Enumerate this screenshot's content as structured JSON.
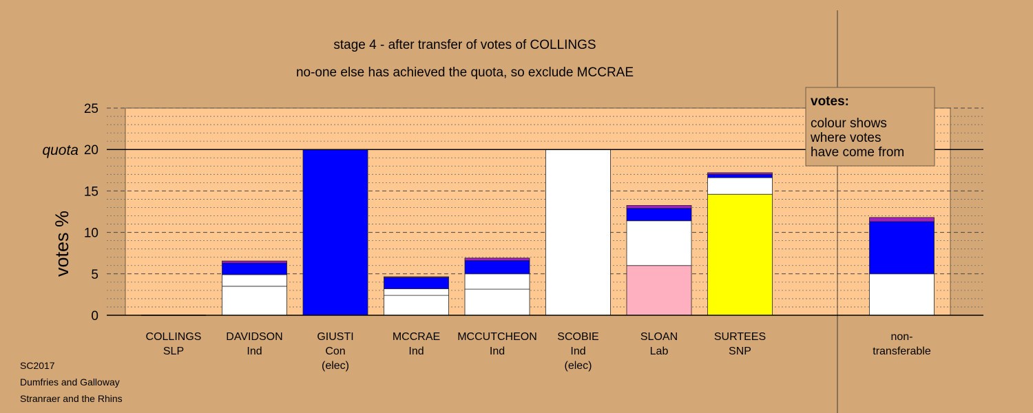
{
  "chart_data": {
    "type": "bar",
    "stacked": true,
    "title": "stage 4 - after transfer of votes of COLLINGS",
    "subtitle": "no-one else has achieved the quota, so exclude MCCRAE",
    "ylabel": "votes %",
    "ylim": [
      0,
      25
    ],
    "yticks": [
      "0",
      "5",
      "10",
      "15",
      "20",
      "25"
    ],
    "quota": {
      "label": "quota",
      "value": 20
    },
    "legend": {
      "title": "votes:",
      "lines": [
        "colour shows",
        "where votes",
        "have come from"
      ],
      "position": "top-right"
    },
    "categories": [
      {
        "lines": [
          "COLLINGS",
          "SLP"
        ],
        "segments": []
      },
      {
        "lines": [
          "DAVIDSON",
          "Ind"
        ],
        "segments": [
          {
            "value": 3.5,
            "color": "#ffffff"
          },
          {
            "value": 1.4,
            "color": "#ffffff"
          },
          {
            "value": 1.4,
            "color": "#0000ff"
          },
          {
            "value": 0.25,
            "color": "#a020c0"
          }
        ]
      },
      {
        "lines": [
          "GIUSTI",
          "Con",
          "(elec)"
        ],
        "segments": [
          {
            "value": 20,
            "color": "#0000ff"
          }
        ]
      },
      {
        "lines": [
          "MCCRAE",
          "Ind"
        ],
        "segments": [
          {
            "value": 2.4,
            "color": "#ffffff"
          },
          {
            "value": 0.8,
            "color": "#ffffff"
          },
          {
            "value": 1.35,
            "color": "#0000ff"
          },
          {
            "value": 0.1,
            "color": "#a020c0"
          }
        ]
      },
      {
        "lines": [
          "MCCUTCHEON",
          "Ind"
        ],
        "segments": [
          {
            "value": 3.15,
            "color": "#ffffff"
          },
          {
            "value": 1.85,
            "color": "#ffffff"
          },
          {
            "value": 1.6,
            "color": "#0000ff"
          },
          {
            "value": 0.3,
            "color": "#a020c0"
          }
        ]
      },
      {
        "lines": [
          "SCOBIE",
          "Ind",
          "(elec)"
        ],
        "segments": [
          {
            "value": 20,
            "color": "#ffffff"
          }
        ]
      },
      {
        "lines": [
          "SLOAN",
          "Lab"
        ],
        "segments": [
          {
            "value": 6.0,
            "color": "#ffb0c0"
          },
          {
            "value": 5.4,
            "color": "#ffffff"
          },
          {
            "value": 1.5,
            "color": "#0000ff"
          },
          {
            "value": 0.35,
            "color": "#a020c0"
          }
        ]
      },
      {
        "lines": [
          "SURTEES",
          "SNP"
        ],
        "segments": [
          {
            "value": 14.6,
            "color": "#ffff00"
          },
          {
            "value": 2.0,
            "color": "#ffffff"
          },
          {
            "value": 0.4,
            "color": "#0000ff"
          },
          {
            "value": 0.2,
            "color": "#a020c0"
          }
        ]
      },
      {
        "lines": [],
        "segments": []
      },
      {
        "lines": [
          "non-",
          "transferable"
        ],
        "segments": [
          {
            "value": 5.0,
            "color": "#ffffff"
          },
          {
            "value": 6.3,
            "color": "#0000ff"
          },
          {
            "value": 0.5,
            "color": "#a020c0"
          }
        ]
      }
    ]
  },
  "footer": [
    "SC2017",
    "Dumfries and Galloway",
    "Stranraer and the Rhins"
  ]
}
